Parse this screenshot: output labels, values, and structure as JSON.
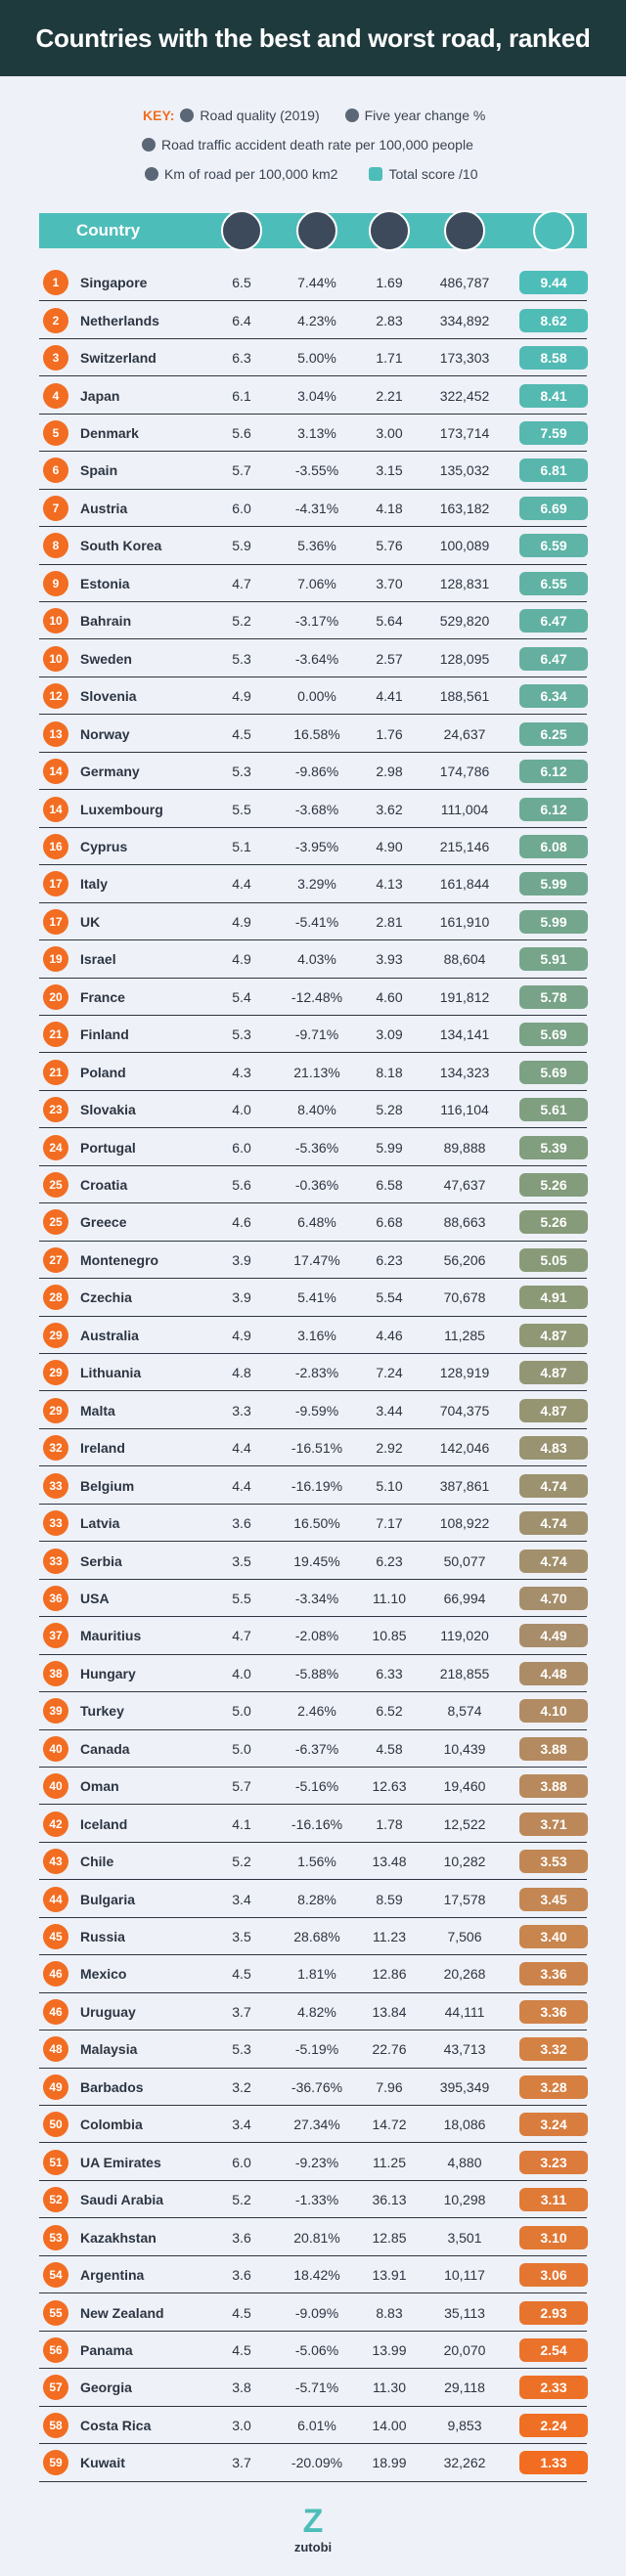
{
  "header": {
    "title": "Countries with the best and worst road, ranked"
  },
  "key": {
    "label": "KEY:",
    "items": [
      "Road quality (2019)",
      "Five year change %",
      "Road traffic accident death rate per 100,000 people",
      "Km of road per 100,000 km2",
      "Total score /10"
    ]
  },
  "table": {
    "header": "Country",
    "rows": [
      [
        "1",
        "Singapore",
        "6.5",
        "7.44%",
        "1.69",
        "486,787",
        "9.44"
      ],
      [
        "2",
        "Netherlands",
        "6.4",
        "4.23%",
        "2.83",
        "334,892",
        "8.62"
      ],
      [
        "3",
        "Switzerland",
        "6.3",
        "5.00%",
        "1.71",
        "173,303",
        "8.58"
      ],
      [
        "4",
        "Japan",
        "6.1",
        "3.04%",
        "2.21",
        "322,452",
        "8.41"
      ],
      [
        "5",
        "Denmark",
        "5.6",
        "3.13%",
        "3.00",
        "173,714",
        "7.59"
      ],
      [
        "6",
        "Spain",
        "5.7",
        "-3.55%",
        "3.15",
        "135,032",
        "6.81"
      ],
      [
        "7",
        "Austria",
        "6.0",
        "-4.31%",
        "4.18",
        "163,182",
        "6.69"
      ],
      [
        "8",
        "South Korea",
        "5.9",
        "5.36%",
        "5.76",
        "100,089",
        "6.59"
      ],
      [
        "9",
        "Estonia",
        "4.7",
        "7.06%",
        "3.70",
        "128,831",
        "6.55"
      ],
      [
        "10",
        "Bahrain",
        "5.2",
        "-3.17%",
        "5.64",
        "529,820",
        "6.47"
      ],
      [
        "10",
        "Sweden",
        "5.3",
        "-3.64%",
        "2.57",
        "128,095",
        "6.47"
      ],
      [
        "12",
        "Slovenia",
        "4.9",
        "0.00%",
        "4.41",
        "188,561",
        "6.34"
      ],
      [
        "13",
        "Norway",
        "4.5",
        "16.58%",
        "1.76",
        "24,637",
        "6.25"
      ],
      [
        "14",
        "Germany",
        "5.3",
        "-9.86%",
        "2.98",
        "174,786",
        "6.12"
      ],
      [
        "14",
        "Luxembourg",
        "5.5",
        "-3.68%",
        "3.62",
        "111,004",
        "6.12"
      ],
      [
        "16",
        "Cyprus",
        "5.1",
        "-3.95%",
        "4.90",
        "215,146",
        "6.08"
      ],
      [
        "17",
        "Italy",
        "4.4",
        "3.29%",
        "4.13",
        "161,844",
        "5.99"
      ],
      [
        "17",
        "UK",
        "4.9",
        "-5.41%",
        "2.81",
        "161,910",
        "5.99"
      ],
      [
        "19",
        "Israel",
        "4.9",
        "4.03%",
        "3.93",
        "88,604",
        "5.91"
      ],
      [
        "20",
        "France",
        "5.4",
        "-12.48%",
        "4.60",
        "191,812",
        "5.78"
      ],
      [
        "21",
        "Finland",
        "5.3",
        "-9.71%",
        "3.09",
        "134,141",
        "5.69"
      ],
      [
        "21",
        "Poland",
        "4.3",
        "21.13%",
        "8.18",
        "134,323",
        "5.69"
      ],
      [
        "23",
        "Slovakia",
        "4.0",
        "8.40%",
        "5.28",
        "116,104",
        "5.61"
      ],
      [
        "24",
        "Portugal",
        "6.0",
        "-5.36%",
        "5.99",
        "89,888",
        "5.39"
      ],
      [
        "25",
        "Croatia",
        "5.6",
        "-0.36%",
        "6.58",
        "47,637",
        "5.26"
      ],
      [
        "25",
        "Greece",
        "4.6",
        "6.48%",
        "6.68",
        "88,663",
        "5.26"
      ],
      [
        "27",
        "Montenegro",
        "3.9",
        "17.47%",
        "6.23",
        "56,206",
        "5.05"
      ],
      [
        "28",
        "Czechia",
        "3.9",
        "5.41%",
        "5.54",
        "70,678",
        "4.91"
      ],
      [
        "29",
        "Australia",
        "4.9",
        "3.16%",
        "4.46",
        "11,285",
        "4.87"
      ],
      [
        "29",
        "Lithuania",
        "4.8",
        "-2.83%",
        "7.24",
        "128,919",
        "4.87"
      ],
      [
        "29",
        "Malta",
        "3.3",
        "-9.59%",
        "3.44",
        "704,375",
        "4.87"
      ],
      [
        "32",
        "Ireland",
        "4.4",
        "-16.51%",
        "2.92",
        "142,046",
        "4.83"
      ],
      [
        "33",
        "Belgium",
        "4.4",
        "-16.19%",
        "5.10",
        "387,861",
        "4.74"
      ],
      [
        "33",
        "Latvia",
        "3.6",
        "16.50%",
        "7.17",
        "108,922",
        "4.74"
      ],
      [
        "33",
        "Serbia",
        "3.5",
        "19.45%",
        "6.23",
        "50,077",
        "4.74"
      ],
      [
        "36",
        "USA",
        "5.5",
        "-3.34%",
        "11.10",
        "66,994",
        "4.70"
      ],
      [
        "37",
        "Mauritius",
        "4.7",
        "-2.08%",
        "10.85",
        "119,020",
        "4.49"
      ],
      [
        "38",
        "Hungary",
        "4.0",
        "-5.88%",
        "6.33",
        "218,855",
        "4.48"
      ],
      [
        "39",
        "Turkey",
        "5.0",
        "2.46%",
        "6.52",
        "8,574",
        "4.10"
      ],
      [
        "40",
        "Canada",
        "5.0",
        "-6.37%",
        "4.58",
        "10,439",
        "3.88"
      ],
      [
        "40",
        "Oman",
        "5.7",
        "-5.16%",
        "12.63",
        "19,460",
        "3.88"
      ],
      [
        "42",
        "Iceland",
        "4.1",
        "-16.16%",
        "1.78",
        "12,522",
        "3.71"
      ],
      [
        "43",
        "Chile",
        "5.2",
        "1.56%",
        "13.48",
        "10,282",
        "3.53"
      ],
      [
        "44",
        "Bulgaria",
        "3.4",
        "8.28%",
        "8.59",
        "17,578",
        "3.45"
      ],
      [
        "45",
        "Russia",
        "3.5",
        "28.68%",
        "11.23",
        "7,506",
        "3.40"
      ],
      [
        "46",
        "Mexico",
        "4.5",
        "1.81%",
        "12.86",
        "20,268",
        "3.36"
      ],
      [
        "46",
        "Uruguay",
        "3.7",
        "4.82%",
        "13.84",
        "44,111",
        "3.36"
      ],
      [
        "48",
        "Malaysia",
        "5.3",
        "-5.19%",
        "22.76",
        "43,713",
        "3.32"
      ],
      [
        "49",
        "Barbados",
        "3.2",
        "-36.76%",
        "7.96",
        "395,349",
        "3.28"
      ],
      [
        "50",
        "Colombia",
        "3.4",
        "27.34%",
        "14.72",
        "18,086",
        "3.24"
      ],
      [
        "51",
        "UA Emirates",
        "6.0",
        "-9.23%",
        "11.25",
        "4,880",
        "3.23"
      ],
      [
        "52",
        "Saudi Arabia",
        "5.2",
        "-1.33%",
        "36.13",
        "10,298",
        "3.11"
      ],
      [
        "53",
        "Kazakhstan",
        "3.6",
        "20.81%",
        "12.85",
        "3,501",
        "3.10"
      ],
      [
        "54",
        "Argentina",
        "3.6",
        "18.42%",
        "13.91",
        "10,117",
        "3.06"
      ],
      [
        "55",
        "New Zealand",
        "4.5",
        "-9.09%",
        "8.83",
        "35,113",
        "2.93"
      ],
      [
        "56",
        "Panama",
        "4.5",
        "-5.06%",
        "13.99",
        "20,070",
        "2.54"
      ],
      [
        "57",
        "Georgia",
        "3.8",
        "-5.71%",
        "11.30",
        "29,118",
        "2.33"
      ],
      [
        "58",
        "Costa Rica",
        "3.0",
        "6.01%",
        "14.00",
        "9,853",
        "2.24"
      ],
      [
        "59",
        "Kuwait",
        "3.7",
        "-20.09%",
        "18.99",
        "32,262",
        "1.33"
      ]
    ]
  },
  "logo": {
    "text": "zutobi"
  }
}
